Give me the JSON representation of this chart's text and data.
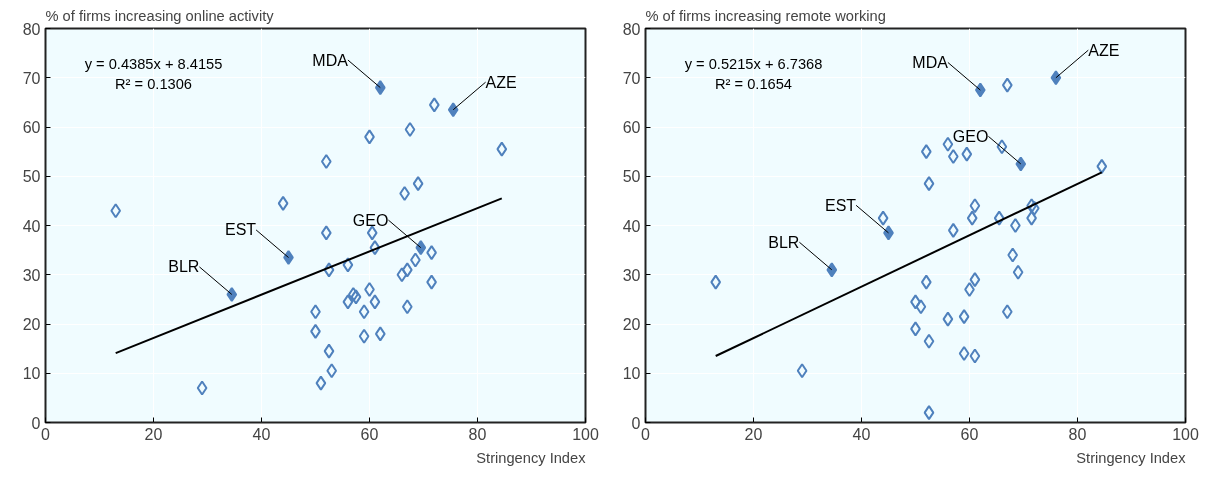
{
  "chart_data": [
    {
      "type": "scatter",
      "ylabel": "% of firms increasing online activity",
      "xlabel": "Stringency Index",
      "xlim": [
        0,
        100
      ],
      "ylim": [
        0,
        80
      ],
      "xticks": [
        0,
        20,
        40,
        60,
        80,
        100
      ],
      "yticks": [
        0,
        10,
        20,
        30,
        40,
        50,
        60,
        70,
        80
      ],
      "grid": true,
      "series": [
        {
          "marker": "diamond",
          "color": "#4f81bd",
          "x": [
            13,
            29,
            44,
            52,
            52,
            52.5,
            50,
            50,
            52.5,
            53,
            51,
            56,
            57,
            57.5,
            56,
            60,
            60.5,
            61,
            60,
            59,
            59,
            61,
            62,
            66.5,
            69,
            67.5,
            72,
            66,
            67,
            68.5,
            71.5,
            71.5,
            67,
            84.5
          ],
          "values": [
            43,
            7,
            44.5,
            53,
            38.5,
            31,
            22.5,
            18.5,
            14.5,
            10.5,
            8,
            32,
            26,
            25.5,
            24.5,
            58,
            38.5,
            35.5,
            27,
            22.5,
            17.5,
            24.5,
            18,
            46.5,
            48.5,
            59.5,
            64.5,
            30,
            31,
            33,
            34.5,
            28.5,
            23.5,
            55.5
          ]
        },
        {
          "marker": "diamond",
          "color": "#4f81bd",
          "x": [
            34.5,
            45,
            62,
            75.5,
            69.5
          ],
          "values": [
            26,
            33.5,
            68,
            63.5,
            35.5
          ]
        },
        {
          "type": "line",
          "marker": "none",
          "color": "#000000",
          "x": [
            13,
            84.5
          ],
          "values": [
            14.1,
            45.5
          ]
        }
      ],
      "annotations": [
        {
          "text": "BLR",
          "x": 34.5,
          "y": 26
        },
        {
          "text": "EST",
          "x": 45,
          "y": 33.5
        },
        {
          "text": "MDA",
          "x": 62,
          "y": 68
        },
        {
          "text": "AZE",
          "x": 75.5,
          "y": 63.5
        },
        {
          "text": "GEO",
          "x": 69.5,
          "y": 35.5
        },
        "y = 0.4385x + 8.4155",
        "R² = 0.1306"
      ]
    },
    {
      "type": "scatter",
      "ylabel": "% of firms increasing remote working",
      "xlabel": "Stringency Index",
      "xlim": [
        0,
        100
      ],
      "ylim": [
        0,
        80
      ],
      "xticks": [
        0,
        20,
        40,
        60,
        80,
        100
      ],
      "yticks": [
        0,
        10,
        20,
        30,
        40,
        50,
        60,
        70,
        80
      ],
      "grid": true,
      "series": [
        {
          "marker": "diamond",
          "color": "#4f81bd",
          "x": [
            13,
            29,
            44,
            52,
            52.5,
            52,
            51,
            50,
            50,
            52.5,
            52.5,
            56,
            57,
            59.5,
            56,
            57,
            59,
            59,
            61,
            60.5,
            61,
            60,
            61,
            65.5,
            66,
            67,
            67,
            68,
            68.5,
            69,
            71.5,
            72,
            71.5,
            84.5
          ],
          "values": [
            28.5,
            10.5,
            41.5,
            55,
            48.5,
            28.5,
            23.5,
            24.5,
            19,
            16.5,
            2,
            56.5,
            54,
            54.5,
            21,
            39,
            21.5,
            14,
            13.5,
            41.5,
            44,
            27,
            29,
            41.5,
            56,
            68.5,
            22.5,
            34,
            40,
            30.5,
            44,
            43.5,
            41.5,
            52
          ]
        },
        {
          "marker": "diamond",
          "color": "#4f81bd",
          "x": [
            34.5,
            45,
            62,
            76,
            69.5
          ],
          "values": [
            31,
            38.5,
            67.5,
            70,
            52.5
          ]
        },
        {
          "type": "line",
          "marker": "none",
          "color": "#000000",
          "x": [
            13,
            84.5
          ],
          "values": [
            13.5,
            50.8
          ]
        }
      ],
      "annotations": [
        {
          "text": "BLR",
          "x": 34.5,
          "y": 31
        },
        {
          "text": "EST",
          "x": 45,
          "y": 38.5
        },
        {
          "text": "MDA",
          "x": 62,
          "y": 67.5
        },
        {
          "text": "AZE",
          "x": 76,
          "y": 70
        },
        {
          "text": "GEO",
          "x": 69.5,
          "y": 52.5
        },
        "y = 0.5215x + 6.7368",
        "R² = 0.1654"
      ]
    }
  ]
}
